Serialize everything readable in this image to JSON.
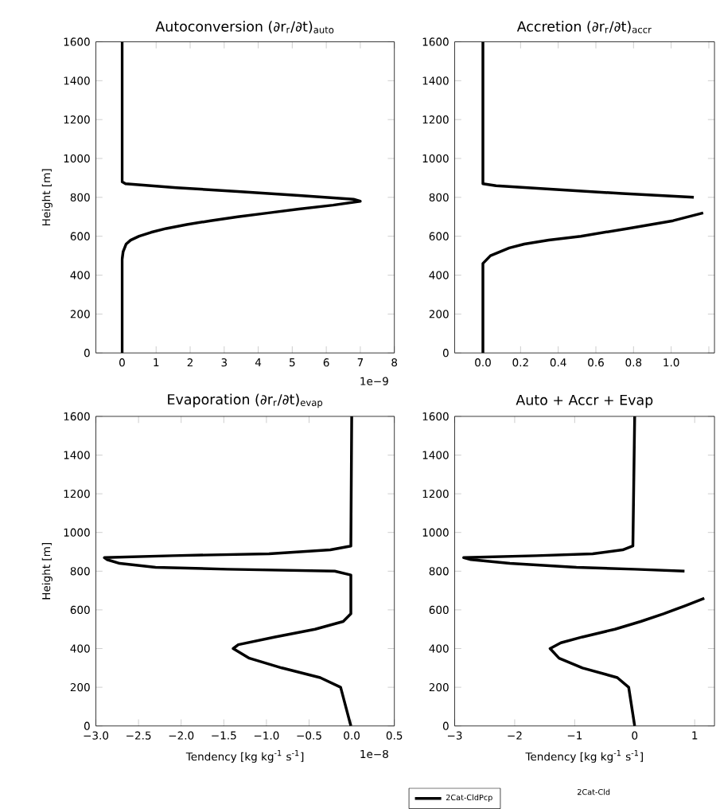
{
  "chart_data": [
    {
      "type": "line",
      "title": "Autoconversion (∂r$_{r}$/∂t)$_{auto}$",
      "ylabel": "Height [m]",
      "annotations": [
        "1e−9"
      ],
      "xlim": [
        -0.77,
        8
      ],
      "ylim": [
        0,
        1600
      ],
      "xticks": [
        0,
        1,
        2,
        3,
        4,
        5,
        6,
        7,
        8
      ],
      "yticks": [
        0,
        200,
        400,
        600,
        800,
        1000,
        1200,
        1400,
        1600
      ],
      "series": [
        {
          "color": "#000000",
          "x": [
            0,
            0,
            0.03,
            0.12,
            0.25,
            0.5,
            0.85,
            1.3,
            1.9,
            2.6,
            3.4,
            4.3,
            5.2,
            6.2,
            7.0,
            6.8,
            5.2,
            3.4,
            1.6,
            0.1,
            0,
            0
          ],
          "values": [
            0,
            480,
            520,
            560,
            580,
            600,
            620,
            640,
            660,
            680,
            700,
            720,
            740,
            760,
            780,
            790,
            810,
            830,
            850,
            870,
            880,
            1600
          ]
        }
      ]
    },
    {
      "type": "line",
      "title": "Accretion (∂r$_{r}$/∂t)$_{accr}$",
      "xlim": [
        -0.15,
        1.23
      ],
      "ylim": [
        0,
        1600
      ],
      "xticks": [
        {
          "value": 0,
          "label": "0.0"
        },
        {
          "value": 0.2,
          "label": "0.2"
        },
        {
          "value": 0.4,
          "label": "0.4"
        },
        {
          "value": 0.6,
          "label": "0.6"
        },
        {
          "value": 0.8,
          "label": "0.8"
        },
        {
          "value": 1.0,
          "label": "1.0"
        },
        {
          "value": 1.2,
          "label": null
        }
      ],
      "yticks": [
        0,
        200,
        400,
        600,
        800,
        1000,
        1200,
        1400,
        1600
      ],
      "series": [
        {
          "color": "#000000",
          "x": [
            0,
            0,
            0.04,
            0.14,
            0.22,
            0.35,
            0.52,
            0.77,
            1.01,
            1.17,
            null,
            1.12,
            0.74,
            0.39,
            0.07,
            0,
            0
          ],
          "values": [
            0,
            460,
            500,
            540,
            560,
            580,
            600,
            640,
            680,
            720,
            null,
            800,
            820,
            840,
            860,
            870,
            1600
          ]
        }
      ]
    },
    {
      "type": "line",
      "title": "Evaporation (∂r$_{r}$/∂t)$_{evap}$",
      "ylabel": "Height [m]",
      "xlabel": "Tendency [kg kg$^{-1}$ s$^{-1}$]",
      "annotations": [
        "1e−8"
      ],
      "xlim": [
        -3.0,
        0.5
      ],
      "ylim": [
        0,
        1600
      ],
      "xticks": [
        {
          "value": -3.0,
          "label": "−3.0"
        },
        {
          "value": -2.5,
          "label": "−2.5"
        },
        {
          "value": -2.0,
          "label": "−2.0"
        },
        {
          "value": -1.5,
          "label": "−1.5"
        },
        {
          "value": -1.0,
          "label": "−1.0"
        },
        {
          "value": -0.5,
          "label": "−0.5"
        },
        {
          "value": 0,
          "label": "0.0"
        },
        {
          "value": 0.5,
          "label": "0.5"
        }
      ],
      "yticks": [
        0,
        200,
        400,
        600,
        800,
        1000,
        1200,
        1400,
        1600
      ],
      "series": [
        {
          "color": "#000000",
          "x": [
            -0.01,
            -0.13,
            -0.37,
            -0.82,
            -1.2,
            -1.39,
            -1.33,
            -0.9,
            -0.43,
            -0.1,
            -0.01,
            -0.01,
            -0.2,
            -1.46,
            -2.3,
            -2.72,
            -2.87,
            -2.9,
            -2.1,
            -0.97,
            -0.25,
            -0.01,
            0
          ],
          "values": [
            0,
            200,
            250,
            300,
            350,
            400,
            420,
            460,
            500,
            540,
            580,
            780,
            800,
            810,
            820,
            840,
            860,
            870,
            880,
            890,
            910,
            930,
            1600
          ]
        }
      ]
    },
    {
      "type": "line",
      "title": "Auto + Accr + Evap",
      "xlabel": "Tendency [kg kg$^{-1}$ s$^{-1}$]",
      "legend": "bottom",
      "xlim": [
        -3.0,
        1.33
      ],
      "ylim": [
        0,
        1600
      ],
      "xticks": [
        {
          "value": -3,
          "label": "−3"
        },
        {
          "value": -2,
          "label": "−2"
        },
        {
          "value": -1,
          "label": "−1"
        },
        0,
        1
      ],
      "yticks": [
        0,
        200,
        400,
        600,
        800,
        1000,
        1200,
        1400,
        1600
      ],
      "series": [
        {
          "name": "2Cat-CldPcp",
          "color": "#000000",
          "x": [
            0,
            -0.1,
            -0.29,
            -0.87,
            -1.26,
            -1.41,
            -1.23,
            -0.87,
            -0.33,
            0.1,
            0.48,
            0.83,
            1.16,
            null,
            0.83,
            0,
            -0.97,
            -2.08,
            -2.73,
            -2.85,
            -1.64,
            -0.7,
            -0.2,
            -0.03,
            0
          ],
          "values": [
            0,
            200,
            250,
            300,
            350,
            400,
            430,
            460,
            500,
            540,
            580,
            620,
            660,
            null,
            800,
            810,
            820,
            840,
            860,
            870,
            880,
            890,
            910,
            930,
            1600
          ]
        }
      ],
      "annotations": [
        "2Cat-Cld"
      ]
    }
  ]
}
